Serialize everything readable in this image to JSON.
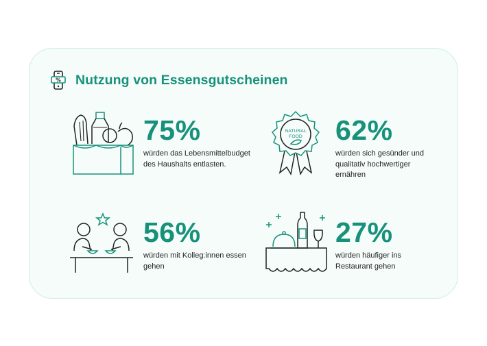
{
  "title": "Nutzung von Essensgutscheinen",
  "colors": {
    "accent": "#17917a",
    "card_bg": "#f5fcfa",
    "card_border": "#cfeee6",
    "line": "#222222"
  },
  "header_icon": {
    "name": "phone-voucher-icon",
    "glyph": "%"
  },
  "badge": {
    "line1": "NATURAL",
    "line2": "FOOD"
  },
  "stats": [
    {
      "value": "75%",
      "text_lines": [
        "würden das Lebensmittelbudget",
        "des Haushalts entlasten."
      ],
      "icon": "grocery-bag-icon"
    },
    {
      "value": "62%",
      "text_lines": [
        "würden sich gesünder und",
        "qualitativ hochwertiger",
        "ernähren"
      ],
      "icon": "natural-food-badge-icon"
    },
    {
      "value": "56%",
      "text_lines": [
        "würden mit Kolleg:innen essen",
        "gehen"
      ],
      "icon": "colleagues-eating-icon"
    },
    {
      "value": "27%",
      "text_lines": [
        "würden häufiger ins",
        "Restaurant gehen"
      ],
      "icon": "restaurant-table-icon"
    }
  ]
}
